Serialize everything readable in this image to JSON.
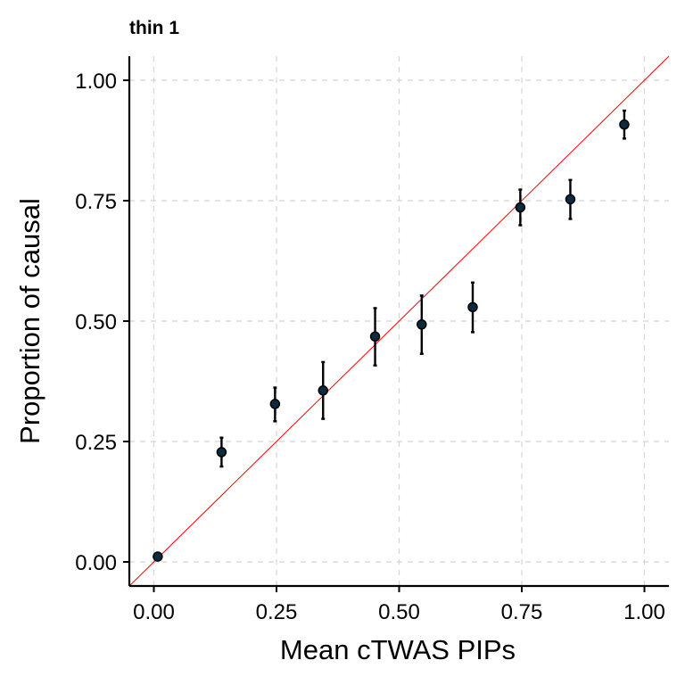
{
  "chart_data": {
    "type": "scatter",
    "title": "thin 1",
    "xlabel": "Mean cTWAS PIPs",
    "ylabel": "Proportion of causal",
    "xlim": [
      -0.05,
      1.05
    ],
    "ylim": [
      -0.05,
      1.05
    ],
    "x_ticks": [
      0.0,
      0.25,
      0.5,
      0.75,
      1.0
    ],
    "y_ticks": [
      0.0,
      0.25,
      0.5,
      0.75,
      1.0
    ],
    "x_tick_labels": [
      "0.00",
      "0.25",
      "0.50",
      "0.75",
      "1.00"
    ],
    "y_tick_labels": [
      "0.00",
      "0.25",
      "0.50",
      "0.75",
      "1.00"
    ],
    "grid": true,
    "reference_line": {
      "slope": 1,
      "intercept": 0,
      "color": "#ff0000"
    },
    "point_color": "#0d2b3e",
    "points": [
      {
        "x": 0.008,
        "y": 0.011,
        "ylo": 0.011,
        "yhi": 0.011
      },
      {
        "x": 0.138,
        "y": 0.228,
        "ylo": 0.198,
        "yhi": 0.258
      },
      {
        "x": 0.247,
        "y": 0.328,
        "ylo": 0.292,
        "yhi": 0.362
      },
      {
        "x": 0.345,
        "y": 0.356,
        "ylo": 0.297,
        "yhi": 0.415
      },
      {
        "x": 0.451,
        "y": 0.468,
        "ylo": 0.408,
        "yhi": 0.527
      },
      {
        "x": 0.546,
        "y": 0.493,
        "ylo": 0.432,
        "yhi": 0.553
      },
      {
        "x": 0.65,
        "y": 0.529,
        "ylo": 0.477,
        "yhi": 0.58
      },
      {
        "x": 0.747,
        "y": 0.736,
        "ylo": 0.699,
        "yhi": 0.773
      },
      {
        "x": 0.849,
        "y": 0.753,
        "ylo": 0.712,
        "yhi": 0.793
      },
      {
        "x": 0.959,
        "y": 0.908,
        "ylo": 0.879,
        "yhi": 0.937
      }
    ]
  }
}
